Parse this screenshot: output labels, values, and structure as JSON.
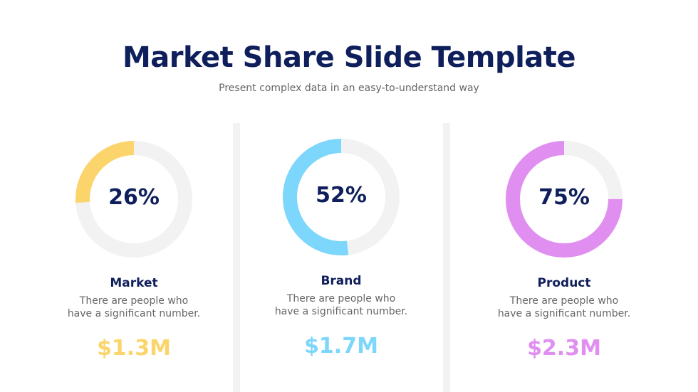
{
  "header": {
    "title": "Market Share Slide Template",
    "subtitle": "Present complex data in an easy-to-understand way"
  },
  "track_color": "#f2f2f2",
  "cards": [
    {
      "percent_label": "26%",
      "percent": 26,
      "label": "Market",
      "desc_line1": "There are people who",
      "desc_line2": "have a significant number.",
      "value": "$1.3M",
      "color": "#fbd56b"
    },
    {
      "percent_label": "52%",
      "percent": 52,
      "label": "Brand",
      "desc_line1": "There are people who",
      "desc_line2": "have a significant number.",
      "value": "$1.7M",
      "color": "#7dd6fb"
    },
    {
      "percent_label": "75%",
      "percent": 75,
      "label": "Product",
      "desc_line1": "There are people who",
      "desc_line2": "have a significant number.",
      "value": "$2.3M",
      "color": "#e08ef0"
    }
  ]
}
